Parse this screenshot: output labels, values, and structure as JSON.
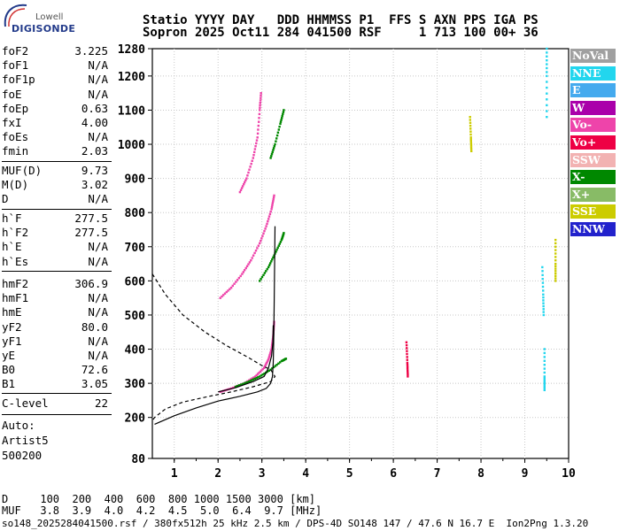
{
  "logo": {
    "top": "Lowell",
    "main": "DIGISONDE"
  },
  "header": {
    "line1": "Statio YYYY DAY   DDD HHMMSS P1  FFS S AXN PPS IGA PS",
    "line2": "Sopron 2025 Oct11 284 041500 RSF     1 713 100 00+ 36"
  },
  "params": {
    "group1": [
      {
        "k": "foF2",
        "v": "3.225"
      },
      {
        "k": "foF1",
        "v": "N/A"
      },
      {
        "k": "foF1p",
        "v": "N/A"
      },
      {
        "k": "foE",
        "v": "N/A"
      },
      {
        "k": "foEp",
        "v": "0.63"
      },
      {
        "k": "fxI",
        "v": "4.00"
      },
      {
        "k": "foEs",
        "v": "N/A"
      },
      {
        "k": "fmin",
        "v": "2.03"
      }
    ],
    "group2": [
      {
        "k": "MUF(D)",
        "v": "9.73"
      },
      {
        "k": "M(D)",
        "v": "3.02"
      },
      {
        "k": "D",
        "v": "N/A"
      }
    ],
    "group3": [
      {
        "k": "h`F",
        "v": "277.5"
      },
      {
        "k": "h`F2",
        "v": "277.5"
      },
      {
        "k": "h`E",
        "v": "N/A"
      },
      {
        "k": "h`Es",
        "v": "N/A"
      }
    ],
    "group4": [
      {
        "k": "hmF2",
        "v": "306.9"
      },
      {
        "k": "hmF1",
        "v": "N/A"
      },
      {
        "k": "hmE",
        "v": "N/A"
      },
      {
        "k": "yF2",
        "v": "80.0"
      },
      {
        "k": "yF1",
        "v": "N/A"
      },
      {
        "k": "yE",
        "v": "N/A"
      },
      {
        "k": "B0",
        "v": "72.6"
      },
      {
        "k": "B1",
        "v": "3.05"
      }
    ],
    "group5": [
      {
        "k": "C-level",
        "v": "22"
      }
    ]
  },
  "auto": {
    "l1": "Auto:",
    "l2": "Artist5",
    "l3": "500200"
  },
  "legend": [
    {
      "label": "NoVal",
      "color": "#a0a0a0"
    },
    {
      "label": "NNE",
      "color": "#22d6ee"
    },
    {
      "label": "E",
      "color": "#44aaee"
    },
    {
      "label": "W",
      "color": "#aa00aa"
    },
    {
      "label": "Vo-",
      "color": "#ee44aa"
    },
    {
      "label": "Vo+",
      "color": "#ee0044"
    },
    {
      "label": "SSW",
      "color": "#f2b2b2"
    },
    {
      "label": "X-",
      "color": "#008800"
    },
    {
      "label": "X+",
      "color": "#88bb66"
    },
    {
      "label": "SSE",
      "color": "#cccc00"
    },
    {
      "label": "NNW",
      "color": "#2222cc"
    }
  ],
  "bottom": {
    "line1": "D     100  200  400  600  800 1000 1500 3000 [km]",
    "line2": "MUF   3.8  3.9  4.0  4.2  4.5  5.0  6.4  9.7 [MHz]",
    "footer": "so148_2025284041500.rsf / 380fx512h 25 kHz 2.5 km / DPS-4D SO148 147 / 47.6 N 16.7 E  Ion2Png 1.3.20"
  },
  "chart_data": {
    "type": "scatter",
    "xlabel": "",
    "ylabel": "",
    "xlim": [
      0.5,
      10
    ],
    "ylim": [
      80,
      1280
    ],
    "xticks": [
      "1",
      "2",
      "3",
      "4",
      "5",
      "6",
      "7",
      "8",
      "9",
      "10"
    ],
    "yticks": [
      "80",
      "200",
      "300",
      "400",
      "500",
      "600",
      "700",
      "800",
      "900",
      "1000",
      "1100",
      "1200",
      "1280"
    ],
    "grid": true,
    "series": [
      {
        "name": "Vo-",
        "type": "trace",
        "points": [
          [
            2.05,
            275
          ],
          [
            2.3,
            285
          ],
          [
            2.6,
            300
          ],
          [
            2.85,
            320
          ],
          [
            3.05,
            345
          ],
          [
            3.15,
            370
          ],
          [
            3.22,
            400
          ],
          [
            3.26,
            440
          ],
          [
            3.28,
            480
          ]
        ]
      },
      {
        "name": "Vo-",
        "type": "trace",
        "points": [
          [
            2.05,
            550
          ],
          [
            2.3,
            580
          ],
          [
            2.55,
            620
          ],
          [
            2.75,
            660
          ],
          [
            2.95,
            710
          ],
          [
            3.1,
            760
          ],
          [
            3.22,
            810
          ],
          [
            3.28,
            850
          ]
        ]
      },
      {
        "name": "Vo-",
        "type": "trace",
        "points": [
          [
            2.5,
            860
          ],
          [
            2.65,
            900
          ],
          [
            2.8,
            960
          ],
          [
            2.9,
            1020
          ],
          [
            2.95,
            1100
          ],
          [
            2.98,
            1150
          ]
        ]
      },
      {
        "name": "X-",
        "type": "trace",
        "points": [
          [
            2.4,
            290
          ],
          [
            2.7,
            305
          ],
          [
            2.95,
            320
          ],
          [
            3.2,
            340
          ],
          [
            3.45,
            365
          ],
          [
            3.55,
            372
          ]
        ]
      },
      {
        "name": "X-",
        "type": "trace",
        "points": [
          [
            2.95,
            600
          ],
          [
            3.15,
            640
          ],
          [
            3.3,
            680
          ],
          [
            3.45,
            720
          ],
          [
            3.5,
            740
          ]
        ]
      },
      {
        "name": "X-",
        "type": "trace",
        "points": [
          [
            3.2,
            960
          ],
          [
            3.3,
            1000
          ],
          [
            3.42,
            1060
          ],
          [
            3.5,
            1100
          ]
        ]
      },
      {
        "name": "Vo+",
        "type": "trace",
        "points": [
          [
            6.3,
            420
          ],
          [
            6.32,
            360
          ],
          [
            6.33,
            320
          ]
        ]
      },
      {
        "name": "SSE",
        "type": "trace",
        "points": [
          [
            7.75,
            1080
          ],
          [
            7.77,
            1020
          ],
          [
            7.78,
            980
          ]
        ]
      },
      {
        "name": "NNE",
        "type": "trace",
        "points": [
          [
            9.4,
            640
          ],
          [
            9.42,
            560
          ],
          [
            9.43,
            500
          ]
        ]
      },
      {
        "name": "NNE",
        "type": "trace",
        "points": [
          [
            9.45,
            400
          ],
          [
            9.45,
            320
          ],
          [
            9.45,
            280
          ]
        ]
      },
      {
        "name": "NNE",
        "type": "trace",
        "points": [
          [
            9.5,
            1280
          ],
          [
            9.5,
            1200
          ],
          [
            9.5,
            1080
          ]
        ]
      },
      {
        "name": "SSE",
        "type": "trace",
        "points": [
          [
            9.7,
            720
          ],
          [
            9.7,
            650
          ],
          [
            9.7,
            600
          ]
        ]
      },
      {
        "name": "model-profile",
        "type": "line",
        "style": "solid",
        "points": [
          [
            0.55,
            180
          ],
          [
            1.0,
            205
          ],
          [
            1.5,
            228
          ],
          [
            2.0,
            248
          ],
          [
            2.5,
            262
          ],
          [
            2.9,
            275
          ],
          [
            3.1,
            285
          ],
          [
            3.2,
            300
          ],
          [
            3.24,
            320
          ],
          [
            3.26,
            360
          ],
          [
            3.27,
            420
          ],
          [
            3.28,
            520
          ],
          [
            3.29,
            640
          ],
          [
            3.3,
            760
          ]
        ]
      },
      {
        "name": "model-profile",
        "type": "line",
        "style": "solid",
        "points": [
          [
            2.0,
            275
          ],
          [
            2.4,
            287
          ],
          [
            2.8,
            305
          ],
          [
            3.05,
            320
          ],
          [
            3.15,
            345
          ],
          [
            3.22,
            380
          ],
          [
            3.25,
            420
          ],
          [
            3.26,
            470
          ]
        ]
      },
      {
        "name": "density-profile",
        "type": "line",
        "style": "dashed",
        "points": [
          [
            0.5,
            620
          ],
          [
            0.8,
            560
          ],
          [
            1.2,
            500
          ],
          [
            1.7,
            450
          ],
          [
            2.2,
            410
          ],
          [
            2.7,
            375
          ],
          [
            3.0,
            352
          ],
          [
            3.2,
            340
          ],
          [
            3.3,
            320
          ],
          [
            3.2,
            305
          ],
          [
            2.8,
            290
          ],
          [
            2.3,
            275
          ],
          [
            1.8,
            262
          ],
          [
            1.2,
            245
          ],
          [
            0.8,
            225
          ],
          [
            0.55,
            200
          ],
          [
            0.5,
            190
          ]
        ]
      }
    ]
  }
}
